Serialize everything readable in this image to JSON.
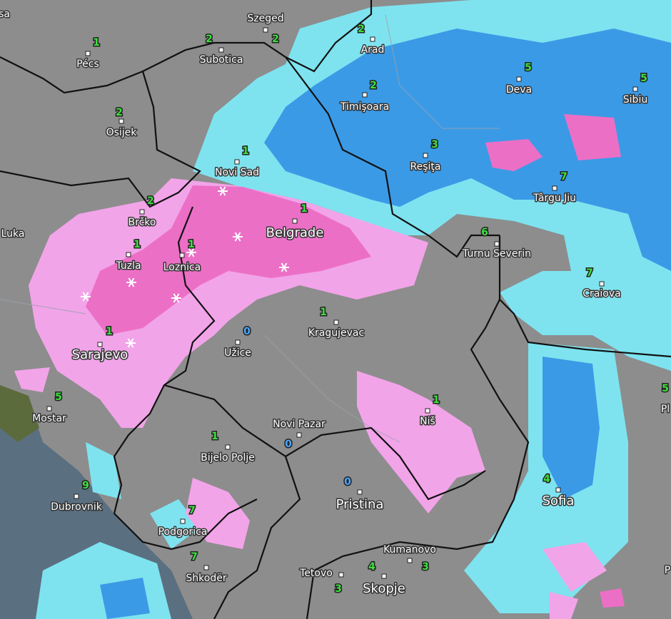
{
  "cities": [
    {
      "name": "Szeged",
      "temp": null
    },
    {
      "name": "Pécs",
      "temp": 1
    },
    {
      "name": "Subotica",
      "temp": 2
    },
    {
      "name": "Arad",
      "temp": 2
    },
    {
      "name": "Timişoara",
      "temp": 2
    },
    {
      "name": "Deva",
      "temp": 5
    },
    {
      "name": "Sibiu",
      "temp": 5
    },
    {
      "name": "Osijek",
      "temp": 2
    },
    {
      "name": "Novi Sad",
      "temp": 1
    },
    {
      "name": "Reşiţa",
      "temp": 3
    },
    {
      "name": "Târgu Jiu",
      "temp": 7
    },
    {
      "name": "Brčko",
      "temp": 2
    },
    {
      "name": "Belgrade",
      "temp": 1
    },
    {
      "name": "Turnu Severin",
      "temp": 6
    },
    {
      "name": "Tuzla",
      "temp": 1
    },
    {
      "name": "Loznica",
      "temp": 1
    },
    {
      "name": "Craiova",
      "temp": 7
    },
    {
      "name": "Kragujevac",
      "temp": 1
    },
    {
      "name": "Užice",
      "temp": 0
    },
    {
      "name": "Sarajevo",
      "temp": 1
    },
    {
      "name": "Mostar",
      "temp": 5
    },
    {
      "name": "Niš",
      "temp": 1
    },
    {
      "name": "Novi Pazar",
      "temp": 0
    },
    {
      "name": "Bijelo Polje",
      "temp": 1
    },
    {
      "name": "Pristina",
      "temp": 0
    },
    {
      "name": "Dubrovnik",
      "temp": 9
    },
    {
      "name": "Sofia",
      "temp": 4
    },
    {
      "name": "Podgorica",
      "temp": 7
    },
    {
      "name": "Kumanovo",
      "temp": 3
    },
    {
      "name": "Shkodër",
      "temp": 7
    },
    {
      "name": "Tetovo",
      "temp": 3
    },
    {
      "name": "Skopje",
      "temp": 4
    }
  ],
  "partial_labels": [
    "sa",
    "Luka",
    "Pl",
    "P"
  ],
  "extra_temps": [
    2,
    5
  ]
}
